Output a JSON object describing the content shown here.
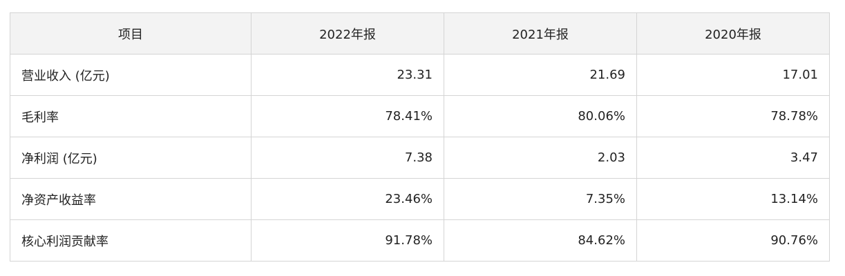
{
  "table": {
    "header": [
      "项目",
      "2022年报",
      "2021年报",
      "2020年报"
    ],
    "rows": [
      [
        "营业收入 (亿元)",
        "23.31",
        "21.69",
        "17.01"
      ],
      [
        "毛利率",
        "78.41%",
        "80.06%",
        "78.78%"
      ],
      [
        "净利润 (亿元)",
        "7.38",
        "2.03",
        "3.47"
      ],
      [
        "净资产收益率",
        "23.46%",
        "7.35%",
        "13.14%"
      ],
      [
        "核心利润贡献率",
        "91.78%",
        "84.62%",
        "90.76%"
      ]
    ]
  }
}
